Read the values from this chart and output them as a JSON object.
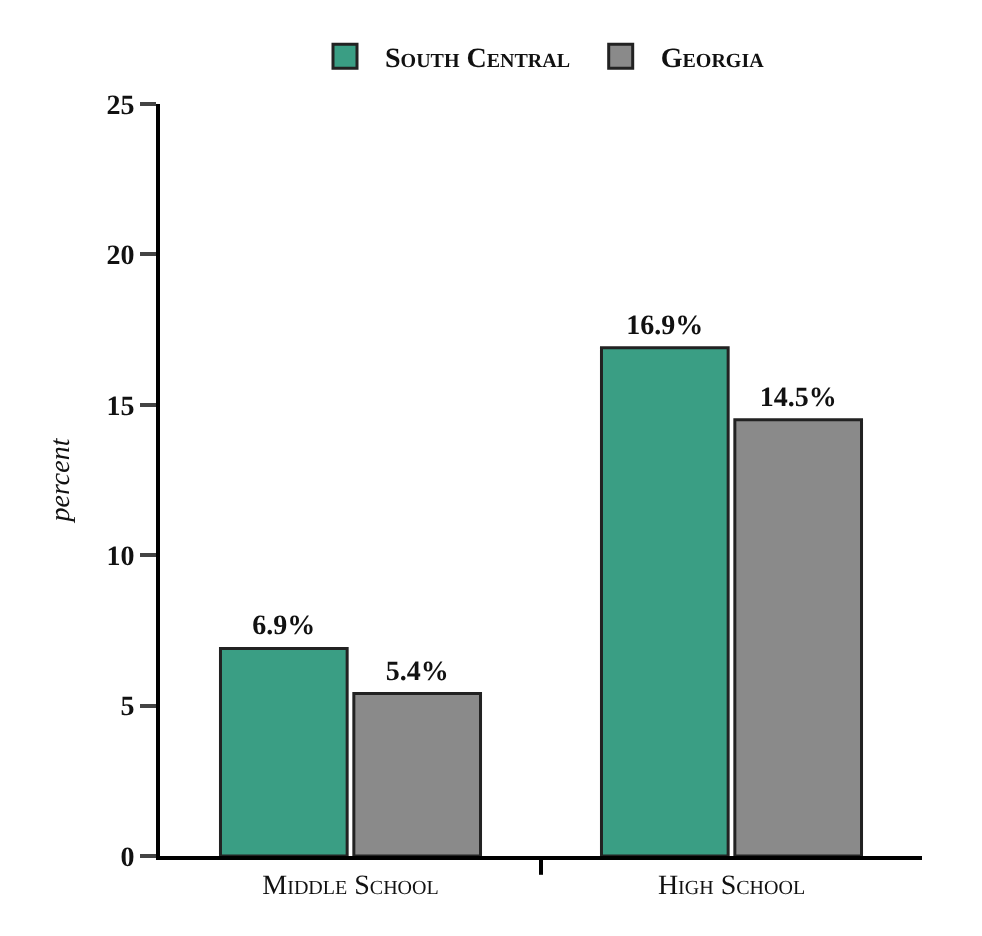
{
  "chart_data": {
    "type": "bar",
    "ylabel": "percent",
    "categories": [
      "Middle School",
      "High School"
    ],
    "series": [
      {
        "name": "South Central",
        "color": "#3a9e84",
        "values": [
          6.9,
          16.9
        ],
        "value_labels": [
          "6.9%",
          "16.9%"
        ]
      },
      {
        "name": "Georgia",
        "color": "#8a8a8a",
        "values": [
          5.4,
          14.5
        ],
        "value_labels": [
          "5.4%",
          "14.5%"
        ]
      }
    ],
    "ylim": [
      0,
      25
    ],
    "yticks": [
      0,
      5,
      10,
      15,
      20,
      25
    ],
    "legend": "top"
  }
}
